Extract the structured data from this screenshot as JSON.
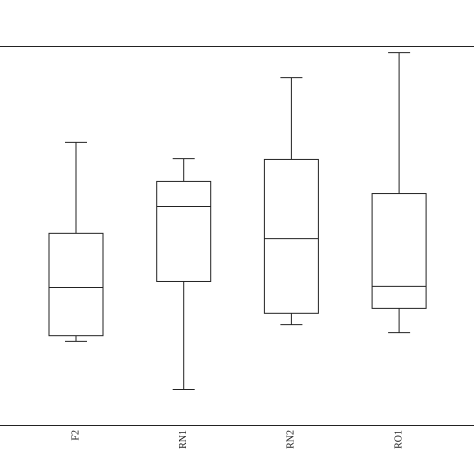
{
  "chart_data": {
    "type": "box",
    "categories": [
      "F2",
      "RN1",
      "RN2",
      "RO1"
    ],
    "boxes": [
      {
        "min": 22.2,
        "q1": 23.7,
        "median": 36.4,
        "q3": 50.7,
        "max": 74.7
      },
      {
        "min": 9.5,
        "q1": 38.0,
        "median": 57.8,
        "q3": 64.4,
        "max": 70.4
      },
      {
        "min": 26.6,
        "q1": 29.6,
        "median": 49.3,
        "q3": 70.2,
        "max": 91.8
      },
      {
        "min": 24.5,
        "q1": 30.9,
        "median": 36.7,
        "q3": 61.2,
        "max": 98.4
      }
    ],
    "ylim": [
      0,
      100
    ],
    "color": "#222222"
  }
}
